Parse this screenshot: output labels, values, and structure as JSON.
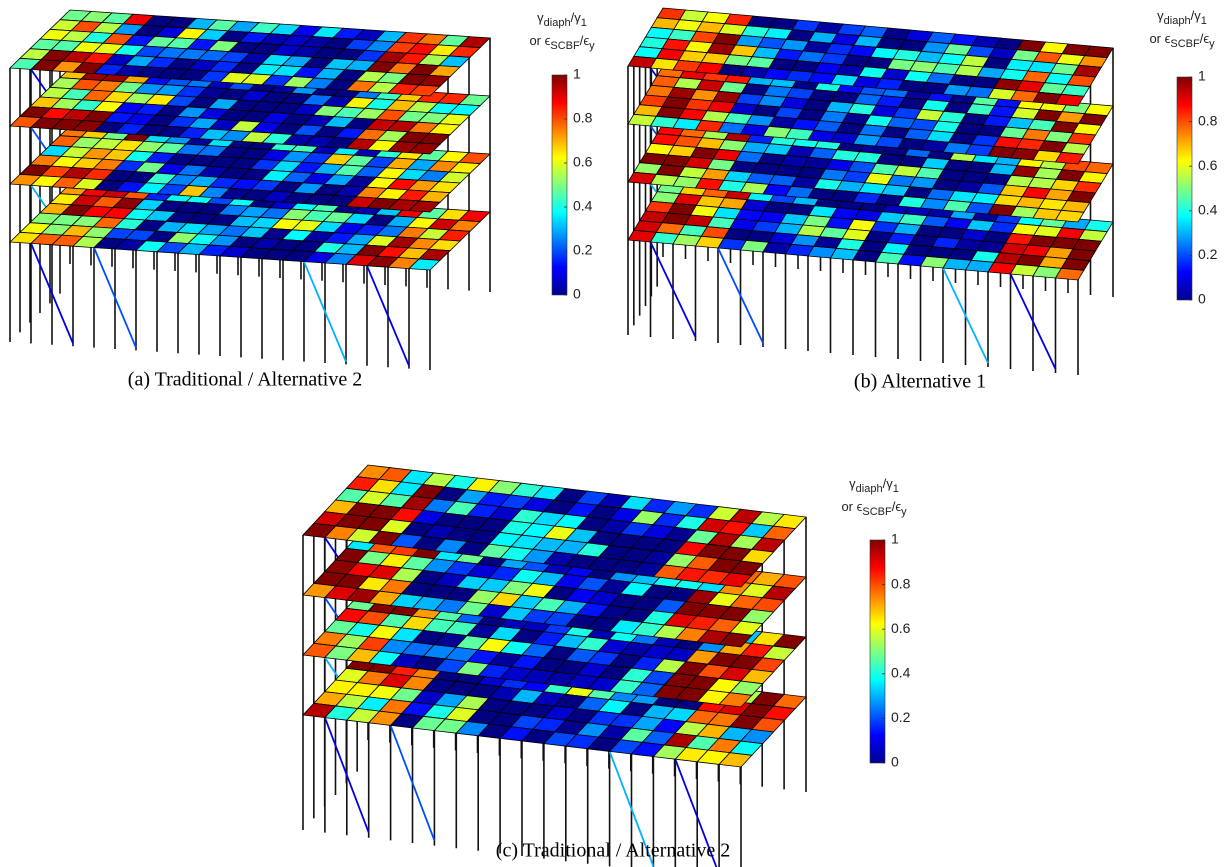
{
  "panels": [
    {
      "caption": "(a) Traditional / Alternative 2",
      "colorbar": {
        "label_line1": [
          "γ",
          "diaph",
          "/γ",
          "1"
        ],
        "label_line2": [
          "or ϵ",
          "SCBF",
          "/ϵ",
          "y"
        ],
        "lim": [
          0,
          1
        ],
        "ticks": [
          0,
          0.2,
          0.4,
          0.6,
          0.8,
          1
        ]
      }
    },
    {
      "caption": "(b) Alternative 1",
      "colorbar": {
        "label_line1": [
          "γ",
          "diaph",
          "/γ",
          "1"
        ],
        "label_line2": [
          "or ϵ",
          "SCBF",
          "/ϵ",
          "y"
        ],
        "lim": [
          0,
          1
        ],
        "ticks": [
          0,
          0.2,
          0.4,
          0.6,
          0.8,
          1
        ]
      }
    },
    {
      "caption": "(c) Traditional / Alternative 2",
      "colorbar": {
        "label_line1": [
          "γ",
          "diaph",
          "/γ",
          "1"
        ],
        "label_line2": [
          "or ϵ",
          "SCBF",
          "/ϵ",
          "y"
        ],
        "lim": [
          0,
          1
        ],
        "ticks": [
          0,
          0.2,
          0.4,
          0.6,
          0.8,
          1
        ]
      }
    }
  ]
}
